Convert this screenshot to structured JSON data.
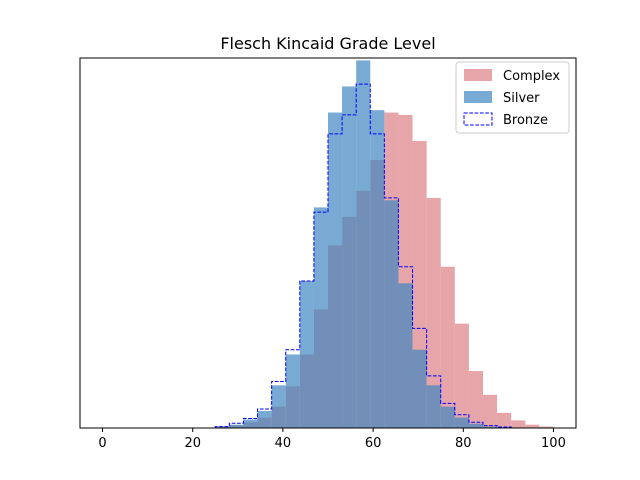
{
  "chart_data": {
    "type": "histogram",
    "title": "Flesch Kincaid Grade Level",
    "xlabel": "",
    "ylabel": "",
    "xlim": [
      -5,
      105
    ],
    "ylim": [
      0,
      78
    ],
    "y_ticks_visible": false,
    "x_ticks": [
      0,
      20,
      40,
      60,
      80,
      100
    ],
    "grid": false,
    "legend_position": "top-right",
    "bin_width": 3.125,
    "series": [
      {
        "name": "Complex",
        "style": "filled",
        "color": "#d9767b",
        "alpha": 0.65,
        "bins": [
          [
            25.0,
            0.3
          ],
          [
            28.125,
            0.6
          ],
          [
            31.25,
            1.2
          ],
          [
            34.375,
            2.2
          ],
          [
            37.5,
            4.5
          ],
          [
            40.625,
            8.8
          ],
          [
            43.75,
            15.5
          ],
          [
            46.875,
            25.0
          ],
          [
            50.0,
            38.5
          ],
          [
            53.125,
            44.5
          ],
          [
            56.25,
            50.0
          ],
          [
            59.375,
            56.5
          ],
          [
            62.5,
            66.5
          ],
          [
            65.625,
            66.0
          ],
          [
            68.75,
            60.5
          ],
          [
            71.875,
            48.5
          ],
          [
            75.0,
            34.0
          ],
          [
            78.125,
            22.0
          ],
          [
            81.25,
            12.0
          ],
          [
            84.375,
            7.0
          ],
          [
            87.5,
            3.2
          ],
          [
            90.625,
            1.6
          ],
          [
            93.75,
            0.7
          ],
          [
            96.875,
            0.3
          ]
        ]
      },
      {
        "name": "Silver",
        "style": "filled",
        "color": "#3e86c0",
        "alpha": 0.7,
        "bins": [
          [
            25.0,
            0.3
          ],
          [
            28.125,
            0.7
          ],
          [
            31.25,
            1.8
          ],
          [
            34.375,
            3.6
          ],
          [
            37.5,
            9.0
          ],
          [
            40.625,
            15.5
          ],
          [
            43.75,
            31.0
          ],
          [
            46.875,
            46.5
          ],
          [
            50.0,
            66.5
          ],
          [
            53.125,
            72.0
          ],
          [
            56.25,
            77.5
          ],
          [
            59.375,
            67.0
          ],
          [
            62.5,
            48.0
          ],
          [
            65.625,
            30.5
          ],
          [
            68.75,
            16.5
          ],
          [
            71.875,
            9.0
          ],
          [
            75.0,
            4.5
          ],
          [
            78.125,
            2.2
          ],
          [
            81.25,
            0.9
          ],
          [
            84.375,
            0.3
          ]
        ]
      },
      {
        "name": "Bronze",
        "style": "step-dashed",
        "color": "#0000ff",
        "alpha": 1,
        "bins": [
          [
            25.0,
            0.3
          ],
          [
            28.125,
            1.0
          ],
          [
            31.25,
            2.0
          ],
          [
            34.375,
            4.0
          ],
          [
            37.5,
            9.8
          ],
          [
            40.625,
            16.5
          ],
          [
            43.75,
            31.0
          ],
          [
            46.875,
            45.5
          ],
          [
            50.0,
            62.0
          ],
          [
            53.125,
            66.0
          ],
          [
            56.25,
            72.5
          ],
          [
            59.375,
            62.0
          ],
          [
            62.5,
            48.5
          ],
          [
            65.625,
            34.0
          ],
          [
            68.75,
            21.0
          ],
          [
            71.875,
            11.0
          ],
          [
            75.0,
            5.2
          ],
          [
            78.125,
            2.8
          ],
          [
            81.25,
            1.2
          ],
          [
            84.375,
            0.5
          ],
          [
            87.5,
            0.2
          ]
        ]
      }
    ]
  }
}
